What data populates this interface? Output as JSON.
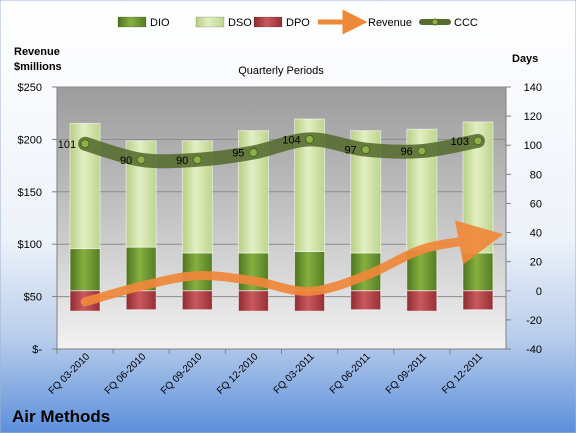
{
  "chart_data": {
    "type": "bar",
    "title": "Quarterly Periods",
    "company": "Air Methods",
    "left_axis_label": [
      "Revenue",
      "$millions"
    ],
    "right_axis_label": "Days",
    "left_ticks": [
      "$-",
      "$50",
      "$100",
      "$150",
      "$200",
      "$250"
    ],
    "left_ylim": [
      0,
      250
    ],
    "right_ticks": [
      "-40",
      "-20",
      "0",
      "20",
      "40",
      "60",
      "80",
      "100",
      "120",
      "140"
    ],
    "right_ylim": [
      -40,
      140
    ],
    "grid": true,
    "legend_position": "top",
    "categories": [
      "FQ 03-2010",
      "FQ 06-2010",
      "FQ 09-2010",
      "FQ 12-2010",
      "FQ 03-2011",
      "FQ 06-2011",
      "FQ 09-2011",
      "FQ 12-2011"
    ],
    "series": [
      {
        "name": "DIO",
        "type": "stacked-bar",
        "axis": "right",
        "values": [
          29,
          30,
          26,
          26,
          27,
          26,
          28,
          26
        ],
        "color": "#6E9A2F"
      },
      {
        "name": "DSO",
        "type": "stacked-bar",
        "axis": "right",
        "values": [
          86,
          73,
          77,
          84,
          91,
          84,
          83,
          90
        ],
        "color": "#CFE3A0"
      },
      {
        "name": "DPO",
        "type": "stacked-bar",
        "axis": "right",
        "values": [
          -14,
          -13,
          -13,
          -14,
          -14,
          -13,
          -14,
          -13
        ],
        "color": "#B8474C"
      },
      {
        "name": "Revenue",
        "type": "line",
        "axis": "left",
        "values": [
          45,
          60,
          70,
          65,
          55,
          70,
          95,
          105
        ],
        "color": "#F0883A"
      },
      {
        "name": "CCC",
        "type": "line",
        "axis": "right",
        "values": [
          101,
          90,
          90,
          95,
          104,
          97,
          96,
          103
        ],
        "labels": [
          "101",
          "90",
          "90",
          "95",
          "104",
          "97",
          "96",
          "103"
        ],
        "color": "#556B2F"
      }
    ]
  }
}
